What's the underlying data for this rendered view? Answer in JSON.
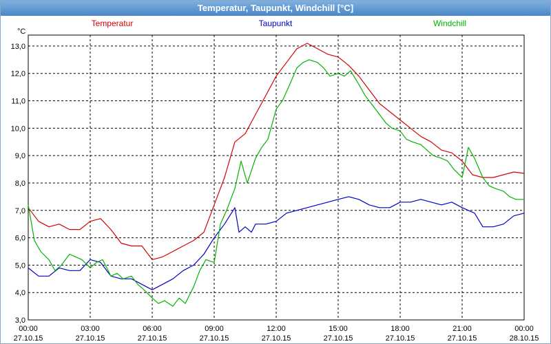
{
  "title": "Temperatur, Taupunkt, Windchill [°C]",
  "colors": {
    "temperatur": "#d40000",
    "taupunkt": "#0000c8",
    "windchill": "#00b400",
    "grid": "#000000",
    "titlebar": "#4a86c8"
  },
  "chart_data": {
    "type": "line",
    "title": "Temperatur, Taupunkt, Windchill [°C]",
    "ylabel": "°C",
    "ylim": [
      3.0,
      13.4
    ],
    "xlim": [
      0,
      24
    ],
    "grid": true,
    "legend_placement": "top",
    "yticks": [
      3.0,
      4.0,
      5.0,
      6.0,
      7.0,
      8.0,
      9.0,
      10.0,
      11.0,
      12.0,
      13.0
    ],
    "ytick_labels": [
      "3,0",
      "4,0",
      "5,0",
      "6,0",
      "7,0",
      "8,0",
      "9,0",
      "10,0",
      "11,0",
      "12,0",
      "13,0"
    ],
    "xticks": [
      {
        "time": "00:00",
        "date": "27.10.15"
      },
      {
        "time": "03:00",
        "date": "27.10.15"
      },
      {
        "time": "06:00",
        "date": "27.10.15"
      },
      {
        "time": "09:00",
        "date": "27.10.15"
      },
      {
        "time": "12:00",
        "date": "27.10.15"
      },
      {
        "time": "15:00",
        "date": "27.10.15"
      },
      {
        "time": "18:00",
        "date": "27.10.15"
      },
      {
        "time": "21:00",
        "date": "27.10.15"
      },
      {
        "time": "00:00",
        "date": "28.10.15"
      }
    ],
    "series": [
      {
        "name": "Temperatur",
        "color": "#d40000",
        "x": [
          0,
          0.5,
          1,
          1.5,
          2,
          2.5,
          3,
          3.5,
          4,
          4.5,
          5,
          5.5,
          6,
          6.5,
          7,
          7.5,
          8,
          8.5,
          9,
          9.5,
          10,
          10.5,
          11,
          11.5,
          12,
          12.5,
          13,
          13.5,
          14,
          14.5,
          15,
          15.5,
          16,
          16.5,
          17,
          17.5,
          18,
          18.5,
          19,
          19.5,
          20,
          20.5,
          21,
          21.5,
          22,
          22.5,
          23,
          23.5,
          24
        ],
        "y": [
          7.1,
          6.6,
          6.4,
          6.5,
          6.3,
          6.3,
          6.6,
          6.7,
          6.3,
          5.8,
          5.7,
          5.7,
          5.2,
          5.3,
          5.5,
          5.7,
          5.9,
          6.2,
          7.2,
          8.2,
          9.5,
          9.8,
          10.5,
          11.2,
          11.9,
          12.4,
          12.9,
          13.1,
          12.9,
          12.7,
          12.6,
          12.3,
          11.9,
          11.4,
          10.9,
          10.6,
          10.3,
          10.0,
          9.7,
          9.5,
          9.2,
          9.1,
          8.8,
          8.3,
          8.2,
          8.2,
          8.3,
          8.4,
          8.35
        ]
      },
      {
        "name": "Taupunkt",
        "color": "#0000c8",
        "x": [
          0,
          0.5,
          1,
          1.5,
          2,
          2.5,
          3,
          3.5,
          4,
          4.5,
          5,
          5.5,
          6,
          6.5,
          7,
          7.5,
          8,
          8.5,
          9,
          9.5,
          10,
          10.2,
          10.5,
          10.8,
          11,
          11.5,
          12,
          12.5,
          13,
          13.5,
          14,
          14.5,
          15,
          15.5,
          16,
          16.5,
          17,
          17.5,
          18,
          18.5,
          19,
          19.5,
          20,
          20.5,
          21,
          21.3,
          21.6,
          22,
          22.5,
          23,
          23.5,
          24
        ],
        "y": [
          4.9,
          4.6,
          4.6,
          4.9,
          4.8,
          4.8,
          5.2,
          5.1,
          4.6,
          4.5,
          4.5,
          4.3,
          4.1,
          4.3,
          4.5,
          4.8,
          5.0,
          5.4,
          6.0,
          6.5,
          7.1,
          6.2,
          6.4,
          6.2,
          6.5,
          6.5,
          6.6,
          6.9,
          7.0,
          7.1,
          7.2,
          7.3,
          7.4,
          7.5,
          7.4,
          7.2,
          7.1,
          7.1,
          7.3,
          7.3,
          7.4,
          7.3,
          7.2,
          7.3,
          7.1,
          7.0,
          6.9,
          6.4,
          6.4,
          6.5,
          6.8,
          6.9
        ]
      },
      {
        "name": "Windchill",
        "color": "#00b400",
        "x": [
          0,
          0.3,
          0.6,
          1,
          1.3,
          1.6,
          2,
          2.3,
          2.6,
          3,
          3.3,
          3.6,
          4,
          4.3,
          4.6,
          5,
          5.3,
          5.6,
          6,
          6.3,
          6.6,
          7,
          7.3,
          7.6,
          8,
          8.3,
          8.6,
          9,
          9.3,
          9.6,
          10,
          10.3,
          10.6,
          11,
          11.3,
          11.6,
          12,
          12.3,
          12.6,
          13,
          13.3,
          13.6,
          14,
          14.3,
          14.6,
          15,
          15.3,
          15.6,
          16,
          16.3,
          16.6,
          17,
          17.3,
          17.6,
          18,
          18.3,
          18.6,
          19,
          19.3,
          19.6,
          20,
          20.3,
          20.6,
          21,
          21.3,
          21.6,
          22,
          22.3,
          22.6,
          23,
          23.3,
          23.6,
          24
        ],
        "y": [
          7.2,
          5.9,
          5.5,
          5.2,
          4.8,
          5.0,
          5.4,
          5.3,
          5.2,
          4.9,
          5.1,
          5.2,
          4.6,
          4.7,
          4.5,
          4.6,
          4.3,
          4.1,
          3.8,
          3.6,
          3.7,
          3.5,
          3.8,
          3.6,
          4.2,
          4.8,
          5.2,
          5.1,
          6.5,
          7.0,
          7.8,
          8.8,
          8.0,
          8.9,
          9.3,
          9.6,
          10.7,
          11.0,
          11.5,
          12.2,
          12.4,
          12.5,
          12.4,
          12.2,
          11.9,
          12.0,
          11.9,
          12.1,
          11.6,
          11.2,
          10.9,
          10.5,
          10.2,
          10.0,
          9.9,
          9.6,
          9.5,
          9.4,
          9.2,
          9.0,
          8.9,
          8.8,
          8.5,
          8.2,
          9.3,
          8.9,
          8.2,
          7.9,
          7.8,
          7.7,
          7.5,
          7.4,
          7.4
        ]
      }
    ]
  }
}
